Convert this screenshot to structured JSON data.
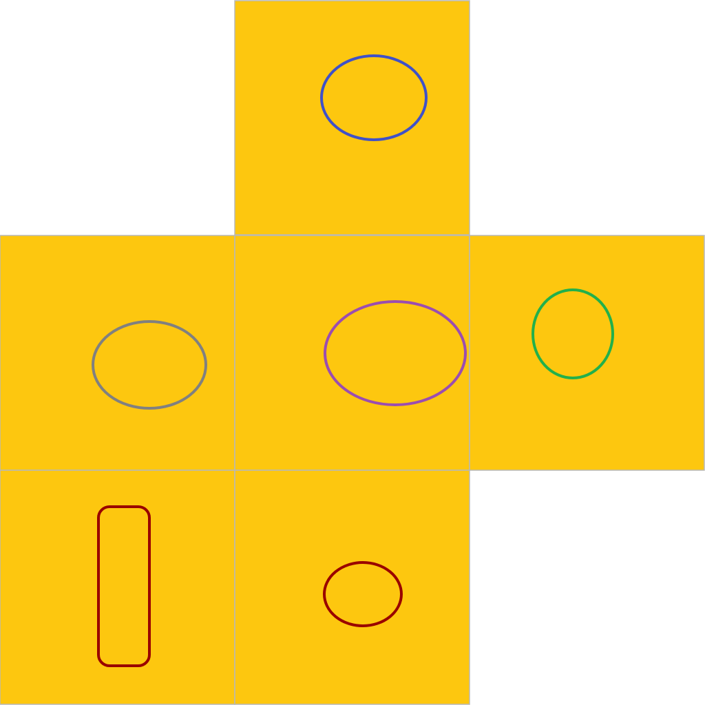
{
  "diagram": {
    "type": "cube-net",
    "face_color": "#FDC70F",
    "faces": [
      {
        "id": "top",
        "shape": "ellipse",
        "stroke": "#3F51C8"
      },
      {
        "id": "left",
        "shape": "ellipse",
        "stroke": "#808080"
      },
      {
        "id": "center",
        "shape": "ellipse",
        "stroke": "#9B4DB0"
      },
      {
        "id": "right",
        "shape": "ellipse",
        "stroke": "#22B04B"
      },
      {
        "id": "bottom-left",
        "shape": "rounded-rectangle",
        "stroke": "#990000"
      },
      {
        "id": "bottom-center",
        "shape": "ellipse",
        "stroke": "#990000"
      }
    ]
  }
}
